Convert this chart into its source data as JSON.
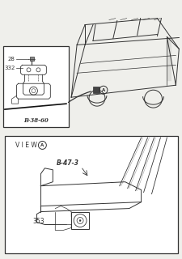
{
  "bg_color": "#efefeb",
  "line_color": "#333333",
  "box1_label": "B·38-60",
  "box2_label": "B-47-3",
  "part_28": "28",
  "part_332": "332",
  "part_353": "353"
}
